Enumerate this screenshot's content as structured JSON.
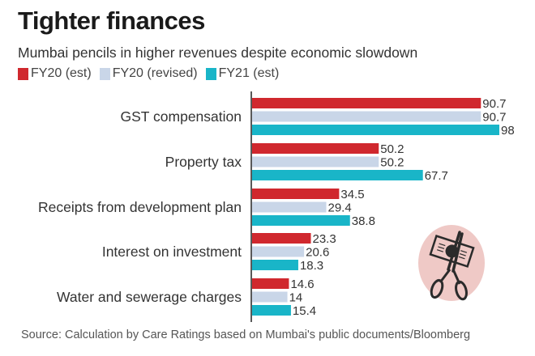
{
  "title": "Tighter finances",
  "subtitle": "Mumbai pencils in higher revenues despite economic slowdown",
  "source": "Source: Calculation by Care Ratings based on Mumbai's public documents/Bloomberg",
  "illustration": "scissors-cutting-banknote-icon",
  "chart_data": {
    "type": "bar",
    "orientation": "horizontal",
    "title": "Tighter finances",
    "subtitle": "Mumbai pencils in higher revenues despite economic slowdown",
    "xlabel": "",
    "ylabel": "",
    "xlim": [
      0,
      100
    ],
    "grid": false,
    "legend_position": "top-left",
    "categories": [
      "GST compensation",
      "Property tax",
      "Receipts from development plan",
      "Interest on investment",
      "Water and sewerage charges"
    ],
    "series": [
      {
        "name": "FY20 (est)",
        "color": "#d0282e",
        "values": [
          90.7,
          50.2,
          34.5,
          23.3,
          14.6
        ],
        "labels": [
          "90.7",
          "50.2",
          "34.5",
          "23.3",
          "14.6"
        ]
      },
      {
        "name": "FY20 (revised)",
        "color": "#c9d6e8",
        "values": [
          90.7,
          50.2,
          29.4,
          20.6,
          14
        ],
        "labels": [
          "90.7",
          "50.2",
          "29.4",
          "20.6",
          "14"
        ]
      },
      {
        "name": "FY21 (est)",
        "color": "#19b5c8",
        "values": [
          98,
          67.7,
          38.8,
          18.3,
          15.4
        ],
        "labels": [
          "98",
          "67.7",
          "38.8",
          "18.3",
          "15.4"
        ]
      }
    ]
  }
}
